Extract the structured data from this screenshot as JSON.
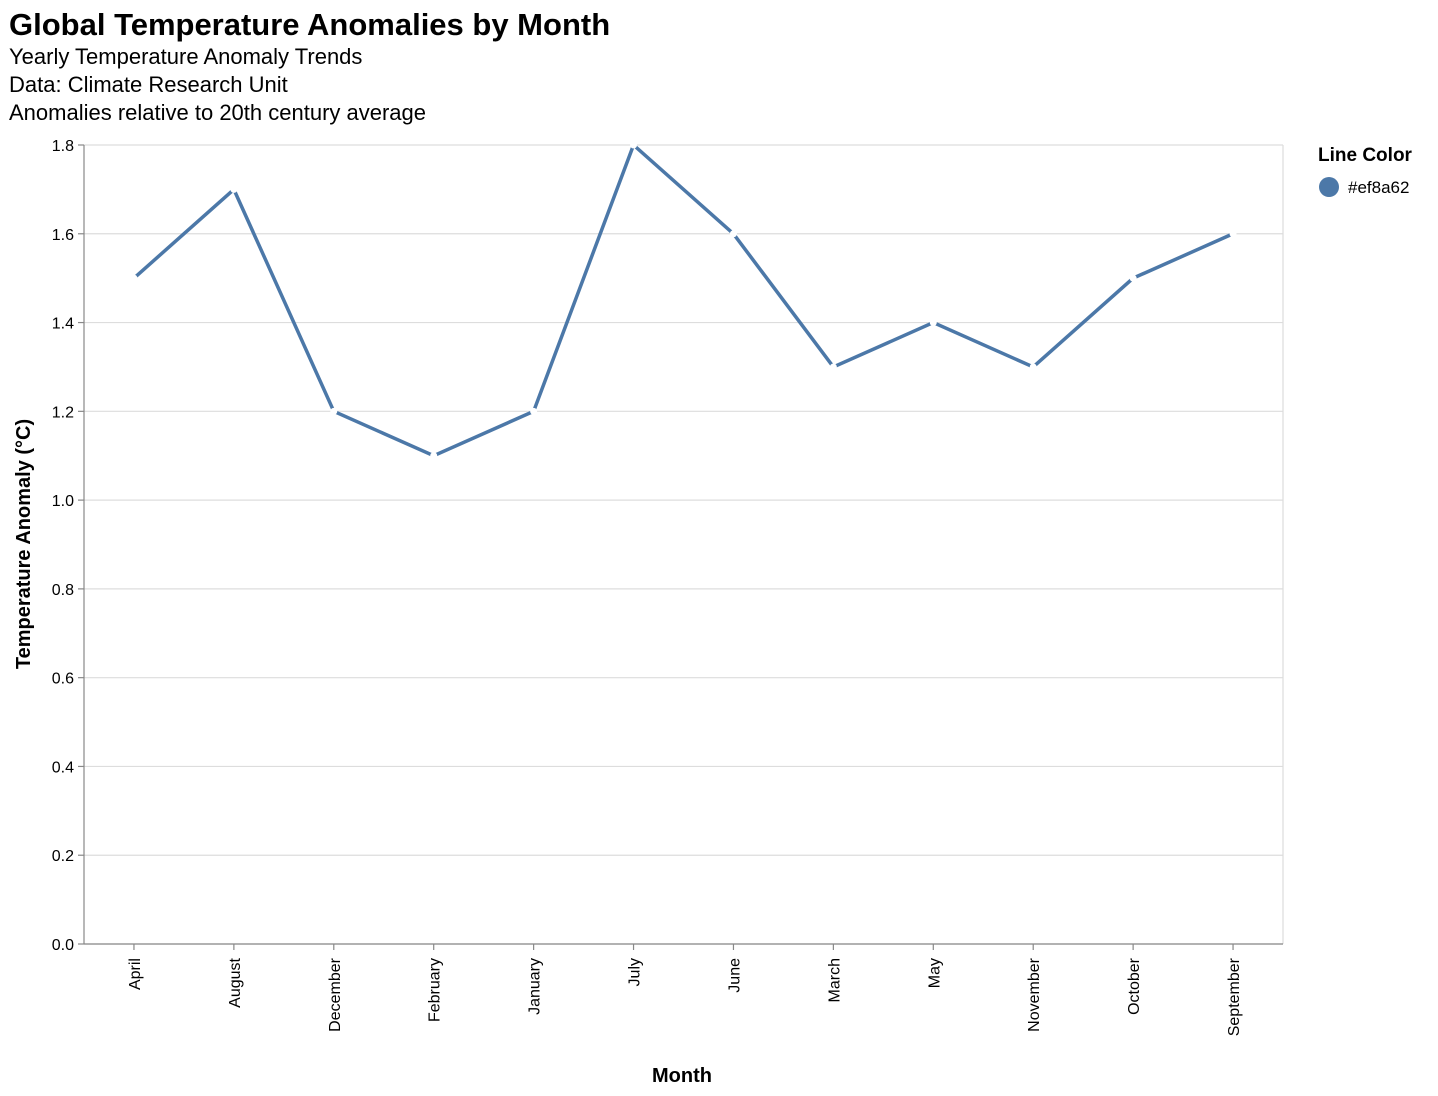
{
  "title": "Global Temperature Anomalies by Month",
  "subtitles": [
    "Yearly Temperature Anomaly Trends",
    "Data: Climate Research Unit",
    "Anomalies relative to 20th century average"
  ],
  "legend": {
    "title": "Line Color",
    "label": "#ef8a62",
    "swatch_color": "#4c78a8"
  },
  "chart_data": {
    "type": "line",
    "xlabel": "Month",
    "ylabel": "Temperature Anomaly (°C)",
    "categories": [
      "April",
      "August",
      "December",
      "February",
      "January",
      "July",
      "June",
      "March",
      "May",
      "November",
      "October",
      "September"
    ],
    "values": [
      1.5,
      1.7,
      1.2,
      1.1,
      1.2,
      1.8,
      1.6,
      1.3,
      1.4,
      1.3,
      1.5,
      1.6
    ],
    "ylim": [
      0,
      1.8
    ],
    "yticks": [
      "0.0",
      "0.2",
      "0.4",
      "0.6",
      "0.8",
      "1.0",
      "1.2",
      "1.4",
      "1.6",
      "1.8"
    ],
    "grid": true,
    "line_color": "#4c78a8",
    "point_color": "#ffffff",
    "legend_placement": "top-right"
  }
}
